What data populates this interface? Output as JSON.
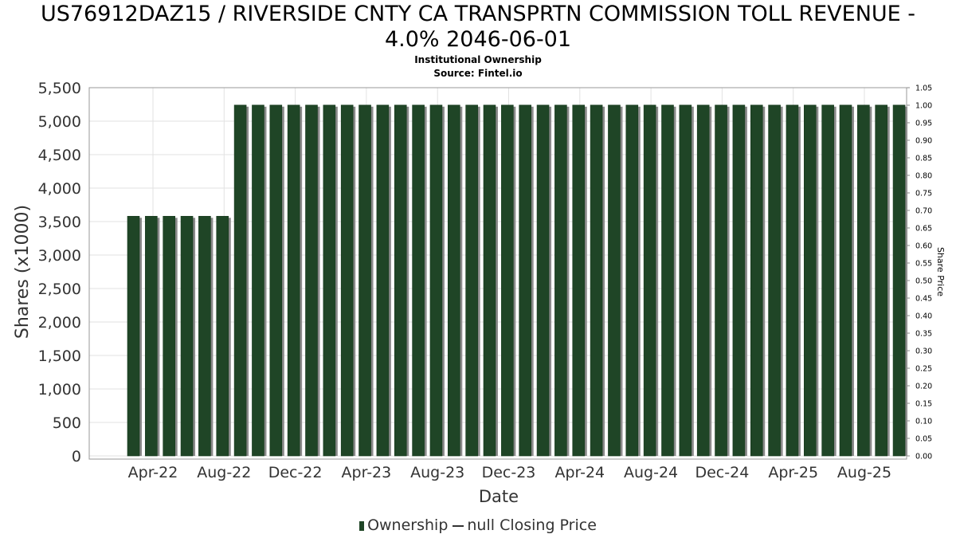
{
  "chart_data": {
    "type": "bar",
    "title_line1": "US76912DAZ15 / RIVERSIDE CNTY CA TRANSPRTN COMMISSION TOLL REVENUE -",
    "title_line2": "4.0% 2046-06-01",
    "subtitle": "Institutional Ownership",
    "source": "Source: Fintel.io",
    "xlabel": "Date",
    "ylabel": "Shares (x1000)",
    "y2label": "Share Price",
    "ylim": [
      0,
      5500
    ],
    "y2lim": [
      0,
      1.05
    ],
    "yticks": [
      "0",
      "500",
      "1,000",
      "1,500",
      "2,000",
      "2,500",
      "3,000",
      "3,500",
      "4,000",
      "4,500",
      "5,000",
      "5,500"
    ],
    "y2ticks": [
      "0.00",
      "0.05",
      "0.10",
      "0.15",
      "0.20",
      "0.25",
      "0.30",
      "0.35",
      "0.40",
      "0.45",
      "0.50",
      "0.55",
      "0.60",
      "0.65",
      "0.70",
      "0.75",
      "0.80",
      "0.85",
      "0.90",
      "0.95",
      "1.00",
      "1.05"
    ],
    "xticks": [
      "Apr-22",
      "Aug-22",
      "Dec-22",
      "Apr-23",
      "Aug-23",
      "Dec-23",
      "Apr-24",
      "Aug-24",
      "Dec-24",
      "Apr-25",
      "Aug-25"
    ],
    "grid": true,
    "legend_position": "bottom",
    "series": [
      {
        "name": "Ownership",
        "color": "#1f4526",
        "values": [
          3580,
          3580,
          3580,
          3580,
          3580,
          3580,
          5240,
          5240,
          5240,
          5240,
          5240,
          5240,
          5240,
          5240,
          5240,
          5240,
          5240,
          5240,
          5240,
          5240,
          5240,
          5240,
          5240,
          5240,
          5240,
          5240,
          5240,
          5240,
          5240,
          5240,
          5240,
          5240,
          5240,
          5240,
          5240,
          5240,
          5240,
          5240,
          5240,
          5240,
          5240,
          5240,
          5240,
          5240
        ]
      },
      {
        "name": "null Closing Price",
        "color": "#333333",
        "values": []
      }
    ]
  }
}
